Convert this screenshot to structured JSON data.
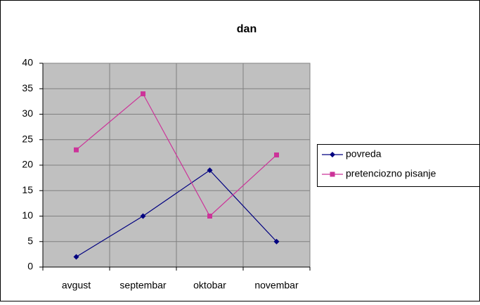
{
  "chart_data": {
    "type": "line",
    "title": "dan",
    "categories": [
      "avgust",
      "septembar",
      "oktobar",
      "novembar"
    ],
    "series": [
      {
        "name": "povreda",
        "color": "#000080",
        "marker": "diamond",
        "values": [
          2,
          10,
          19,
          5
        ]
      },
      {
        "name": "pretenciozno pisanje",
        "color": "#cc3399",
        "marker": "square",
        "values": [
          23,
          34,
          10,
          22
        ]
      }
    ],
    "ylim": [
      0,
      40
    ],
    "yticks": [
      0,
      5,
      10,
      15,
      20,
      25,
      30,
      35,
      40
    ],
    "grid": true,
    "legend": "right"
  }
}
